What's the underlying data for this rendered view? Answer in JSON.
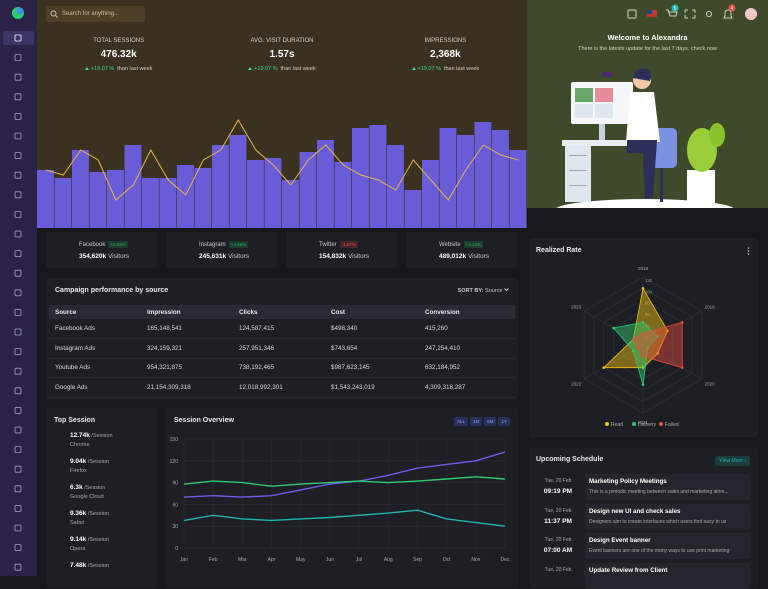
{
  "header": {
    "search_placeholder": "Search for anything...",
    "cart_badge": "5",
    "bell_badge": "4"
  },
  "stats": [
    {
      "label": "TOTAL SESSIONS",
      "value": "476.32k",
      "change": "+19.07 %",
      "note": "than last week"
    },
    {
      "label": "AVG. VISIT DURATION",
      "value": "1.57s",
      "change": "+19.07 %",
      "note": "than last week"
    },
    {
      "label": "IMPRESSIONS",
      "value": "2,368k",
      "change": "+19.07 %",
      "note": "than last week"
    }
  ],
  "hero_chart": {
    "type": "bar",
    "ylim": [
      0,
      110
    ],
    "bar_color": "#6a5bd8",
    "line_color": "#e2b548",
    "values": [
      58,
      50,
      78,
      56,
      58,
      83,
      50,
      50,
      63,
      60,
      83,
      93,
      68,
      70,
      48,
      76,
      88,
      66,
      100,
      103,
      83,
      38,
      68,
      100,
      93,
      106,
      98,
      78
    ],
    "line_values": [
      58,
      53,
      78,
      68,
      28,
      43,
      78,
      48,
      33,
      68,
      78,
      108,
      78,
      63,
      43,
      68,
      83,
      63,
      53,
      48,
      38,
      68,
      48,
      28,
      58,
      83,
      73,
      68
    ]
  },
  "welcome": {
    "title": "Welcome to Alexandra",
    "subtitle": "There is the latests update for the last 7 days. check now"
  },
  "sources": [
    {
      "name": "Facebook",
      "change": "+2.59%",
      "change_color": "#27ae60",
      "value": "354,620k",
      "unit": "Visitors",
      "icon_color": "#2d6cdf"
    },
    {
      "name": "Instagram",
      "change": "+4.65%",
      "change_color": "#27ae60",
      "value": "245,631k",
      "unit": "Visitors",
      "icon_color": "#e1306c"
    },
    {
      "name": "Twitter",
      "change": "-1.67%",
      "change_color": "#e74c3c",
      "value": "154,832k",
      "unit": "Visitors",
      "icon_color": "#1da1f2"
    },
    {
      "name": "Website",
      "change": "+3.12%",
      "change_color": "#27ae60",
      "value": "489,012k",
      "unit": "Visitors",
      "icon_color": "#9aa0a6"
    }
  ],
  "campaign": {
    "title": "Campaign performance by source",
    "sort_label": "SORT BY:",
    "sort_value": "Source",
    "columns": [
      "Source",
      "Impression",
      "Clicks",
      "Cost",
      "Conversion"
    ],
    "rows": [
      [
        "Facebook Ads",
        "165,148,541",
        "124,587,415",
        "$498,340",
        "415,260"
      ],
      [
        "Instagram Ads",
        "324,159,321",
        "257,951,346",
        "$743,654",
        "247,254,410"
      ],
      [
        "Youtube Ads",
        "954,321,875",
        "738,192,465",
        "$987,623,145",
        "632,184,952"
      ],
      [
        "Google Ads",
        "21,154,309,318",
        "12,018,992,301",
        "$1,543,243,019",
        "4,309,318,287"
      ]
    ]
  },
  "top_session": {
    "title": "Top Session",
    "items": [
      {
        "value": "12.74k",
        "unit": "/Session",
        "name": "Chrome",
        "color": "#f4b400"
      },
      {
        "value": "9.04k",
        "unit": "/Session",
        "name": "Firefox",
        "color": "#ff7139"
      },
      {
        "value": "6.3k",
        "unit": "/Session",
        "name": "Google Cloud",
        "color": "#9ecbff"
      },
      {
        "value": "9.36k",
        "unit": "/Session",
        "name": "Safari",
        "color": "#3d8fe0"
      },
      {
        "value": "9.14k",
        "unit": "/Session",
        "name": "Opera",
        "color": "#e0222d"
      },
      {
        "value": "7.48k",
        "unit": "/Session",
        "color": "#2ecc71"
      }
    ]
  },
  "session_overview": {
    "type": "line",
    "title": "Session Overview",
    "ranges": [
      "ALL",
      "1M",
      "6M",
      "1Y"
    ],
    "categories": [
      "Jan",
      "Feb",
      "Mar",
      "Apr",
      "May",
      "Jun",
      "Jul",
      "Aug",
      "Sep",
      "Oct",
      "Nov",
      "Dec"
    ],
    "ylim": [
      0,
      150
    ],
    "yticks": [
      0,
      30,
      60,
      90,
      120,
      150
    ],
    "grid": true,
    "series": [
      {
        "color": "#6c5ce7",
        "values": [
          70,
          72,
          70,
          72,
          80,
          88,
          92,
          100,
          110,
          115,
          120,
          132
        ]
      },
      {
        "color": "#2ecc71",
        "values": [
          88,
          92,
          90,
          85,
          88,
          90,
          92,
          90,
          92,
          95,
          98,
          95
        ]
      },
      {
        "color": "#1fb5ad",
        "values": [
          38,
          45,
          40,
          38,
          40,
          42,
          45,
          48,
          52,
          40,
          35,
          30
        ]
      }
    ]
  },
  "realized_rate": {
    "type": "radar",
    "title": "Realized Rate",
    "categories": [
      "2018",
      "2019",
      "2020",
      "2021",
      "2022",
      "2023"
    ],
    "rlim": [
      0,
      120
    ],
    "rticks": [
      20,
      40,
      60,
      80,
      100,
      120
    ],
    "series": [
      {
        "name": "Read",
        "color": "#f1c40f",
        "values": [
          100,
          50,
          30,
          40,
          80,
          20
        ]
      },
      {
        "name": "Delivery",
        "color": "#2ecc71",
        "values": [
          40,
          30,
          10,
          70,
          20,
          60
        ]
      },
      {
        "name": "Failed",
        "color": "#e74c3c",
        "values": [
          20,
          80,
          80,
          20,
          10,
          20
        ]
      }
    ]
  },
  "schedule": {
    "title": "Upcoming Schedule",
    "action": "View More",
    "items": [
      {
        "date": "Tue, 20 Feb",
        "time": "09:19 PM",
        "title": "Marketing Policy Meetings",
        "desc": "This is a periodic meeting between sales and marketing alme..."
      },
      {
        "date": "Tue, 20 Feb",
        "time": "11:37 PM",
        "title": "Design new UI and check sales",
        "desc": "Designers aim to create interfaces which users find easy to us"
      },
      {
        "date": "Tue, 20 Feb",
        "time": "07:00 AM",
        "title": "Design Event banner",
        "desc": "Event banners are one of the many ways to use print marketing"
      },
      {
        "date": "Tue, 20 Feb",
        "title": "Update Review from Client"
      }
    ]
  }
}
